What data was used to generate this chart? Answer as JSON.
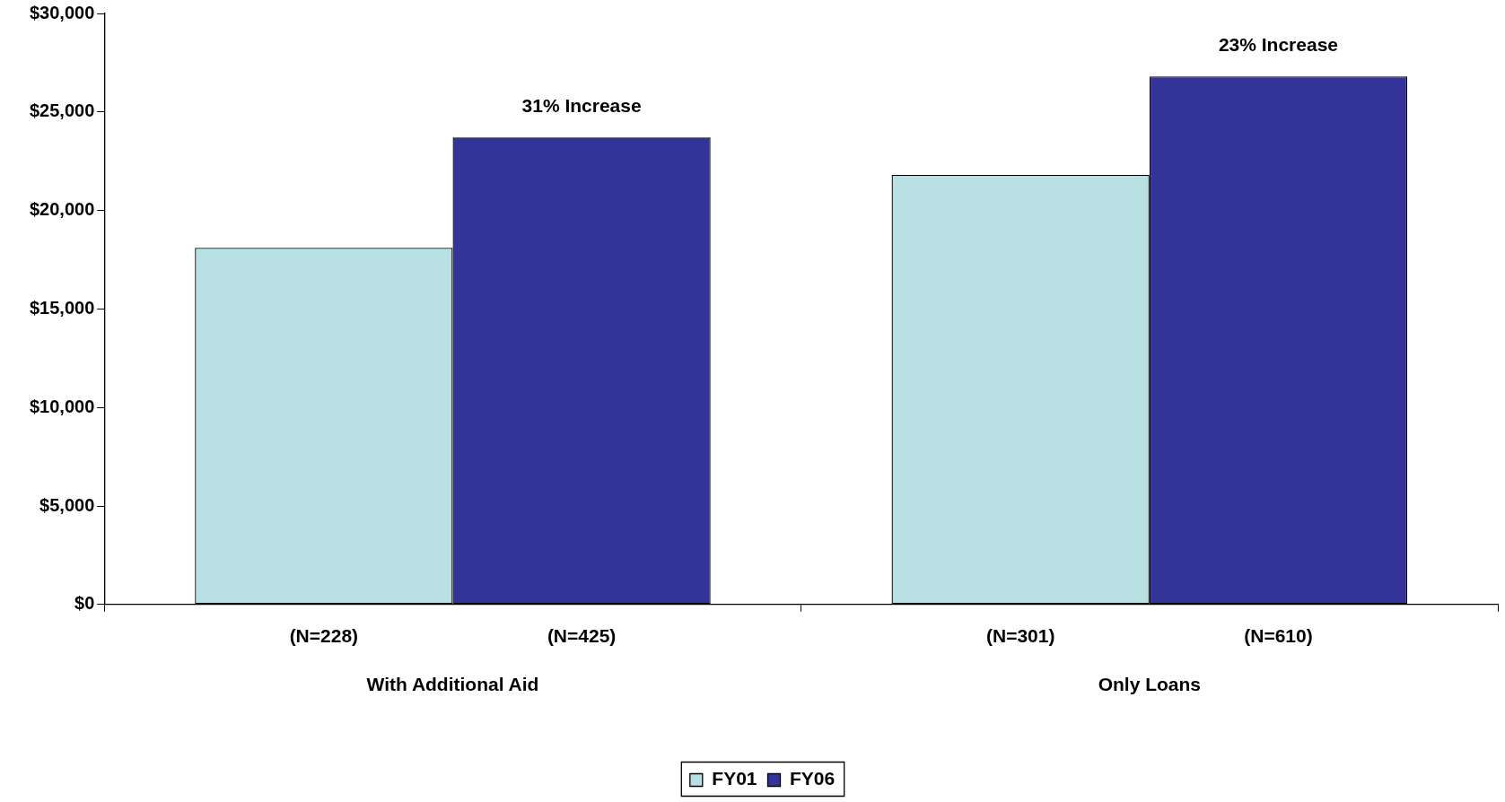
{
  "chart_data": {
    "type": "bar",
    "categories": [
      "With Additional Aid",
      "Only Loans"
    ],
    "series": [
      {
        "name": "FY01",
        "color": "#b9e0e3",
        "values": [
          18100,
          21800
        ]
      },
      {
        "name": "FY06",
        "color": "#333399",
        "values": [
          23700,
          26800
        ]
      }
    ],
    "ylim": [
      0,
      30000
    ],
    "yticks": [
      {
        "value": 0,
        "label": "$0"
      },
      {
        "value": 5000,
        "label": "$5,000"
      },
      {
        "value": 10000,
        "label": "$10,000"
      },
      {
        "value": 15000,
        "label": "$15,000"
      },
      {
        "value": 20000,
        "label": "$20,000"
      },
      {
        "value": 25000,
        "label": "$25,000"
      },
      {
        "value": 30000,
        "label": "$30,000"
      }
    ],
    "annotations": [
      "(N=228)",
      "(N=425)",
      "(N=301)",
      "(N=610)",
      "31% Increase",
      "23% Increase"
    ],
    "grid": false,
    "legend": "bottom"
  }
}
